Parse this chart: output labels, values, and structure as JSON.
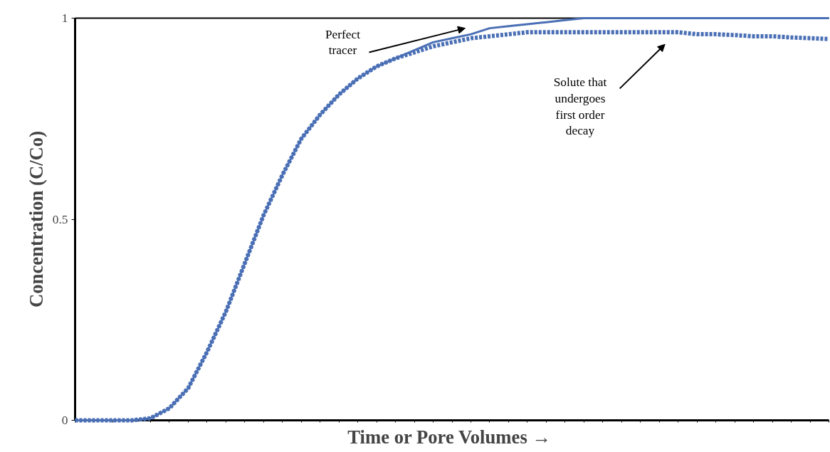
{
  "chart_data": {
    "type": "line",
    "xlabel": "Time  or Pore Volumes →",
    "ylabel": "Concentration (C/Co)",
    "categories": [
      null,
      null,
      null,
      null,
      null,
      null,
      null,
      null,
      null,
      null,
      null,
      null,
      null,
      null,
      null,
      null,
      null,
      null,
      null,
      null,
      null,
      null,
      null,
      null,
      null,
      null,
      null,
      null,
      null,
      null,
      null,
      null,
      null,
      null,
      null,
      null,
      null,
      null,
      null,
      null,
      null
    ],
    "series": [
      {
        "color": "#4a6fb5",
        "line_style": "solid",
        "values": [
          0,
          0,
          0,
          0,
          0.005,
          0.03,
          0.08,
          0.17,
          0.27,
          0.39,
          0.51,
          0.61,
          0.7,
          0.76,
          0.81,
          0.85,
          0.88,
          0.9,
          0.92,
          0.94,
          0.95,
          0.96,
          0.975,
          0.98,
          0.985,
          0.99,
          0.995,
          1,
          1,
          1,
          1,
          1,
          1,
          1,
          1,
          1,
          1,
          1,
          1,
          1,
          1
        ]
      },
      {
        "color": "#4a6fb5",
        "line_style": "dashed",
        "values": [
          0,
          0,
          0,
          0,
          0.005,
          0.03,
          0.08,
          0.17,
          0.27,
          0.39,
          0.51,
          0.61,
          0.7,
          0.76,
          0.81,
          0.85,
          0.88,
          0.9,
          0.915,
          0.93,
          0.94,
          0.95,
          0.955,
          0.96,
          0.965,
          0.965,
          0.965,
          0.965,
          0.965,
          0.965,
          0.965,
          0.965,
          0.965,
          0.96,
          0.96,
          0.958,
          0.955,
          0.955,
          0.952,
          0.95,
          0.948
        ]
      }
    ],
    "ylim": [
      0,
      1
    ],
    "yticks": [
      0,
      0.5,
      1
    ],
    "tick_labels": "y",
    "grid": false,
    "annotations": [
      "Perfect\ntracer",
      "Solute that\nundergoes\nfirst order\ndecay"
    ]
  }
}
